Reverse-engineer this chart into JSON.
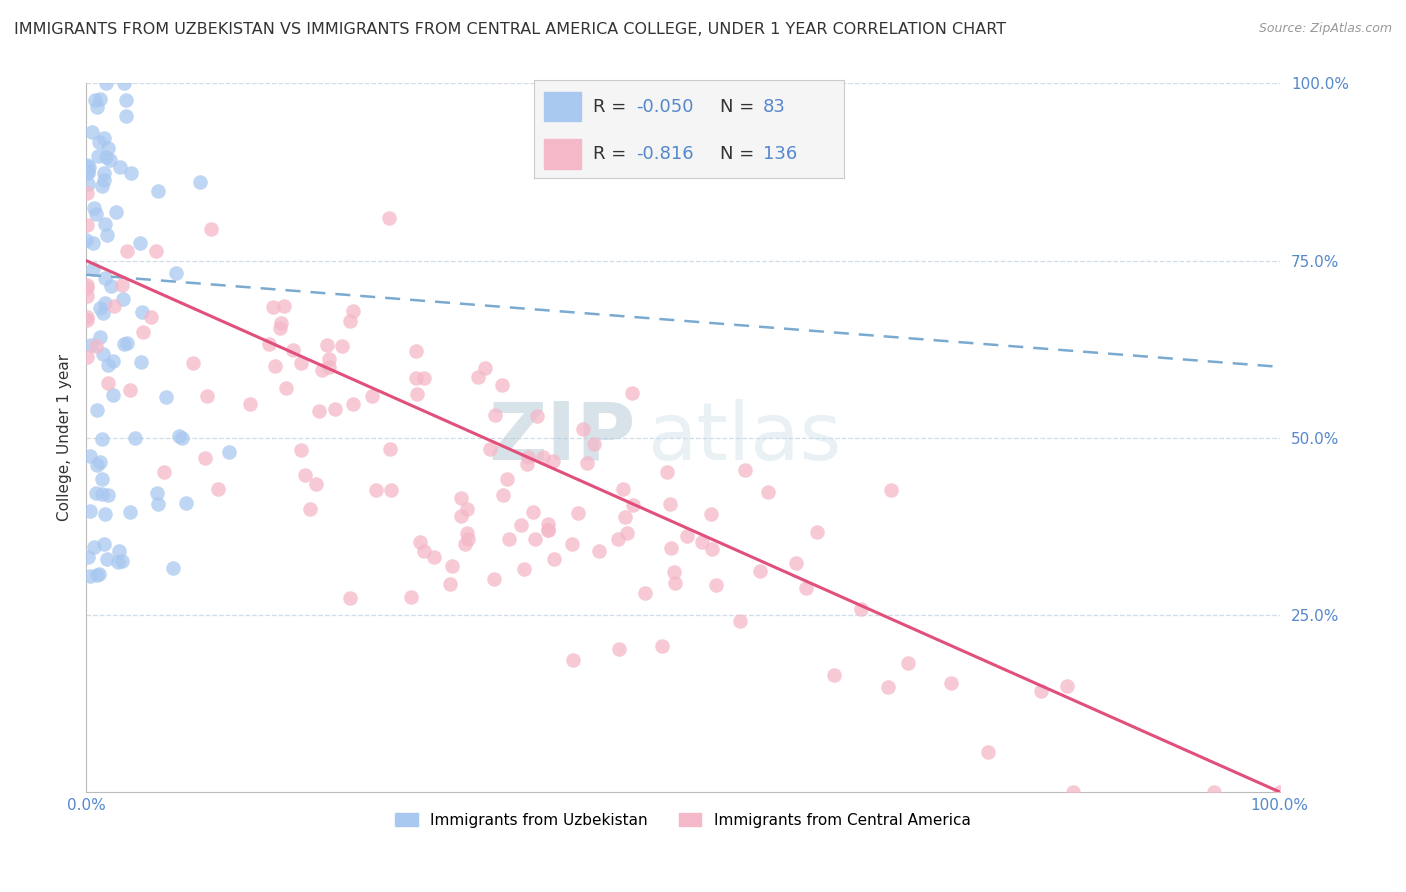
{
  "title": "IMMIGRANTS FROM UZBEKISTAN VS IMMIGRANTS FROM CENTRAL AMERICA COLLEGE, UNDER 1 YEAR CORRELATION CHART",
  "source": "Source: ZipAtlas.com",
  "ylabel": "College, Under 1 year",
  "xlim": [
    0.0,
    1.0
  ],
  "ylim": [
    0.0,
    1.0
  ],
  "yticks": [
    0.25,
    0.5,
    0.75,
    1.0
  ],
  "ytick_labels": [
    "25.0%",
    "50.0%",
    "75.0%",
    "100.0%"
  ],
  "xtick_left_label": "0.0%",
  "xtick_right_label": "100.0%",
  "legend_entries": [
    {
      "label": "Immigrants from Uzbekistan",
      "color": "#a8c8f0",
      "R": "-0.050",
      "N": "83"
    },
    {
      "label": "Immigrants from Central America",
      "color": "#f4b8c8",
      "R": "-0.816",
      "N": "136"
    }
  ],
  "R_uzbekistan": -0.05,
  "N_uzbekistan": 83,
  "R_central_america": -0.816,
  "N_central_america": 136,
  "scatter_color_uzbekistan": "#a8c8f0",
  "scatter_color_central_america": "#f4b8c8",
  "line_color_uzbekistan": "#7aaad0",
  "line_color_central_america": "#e0507a",
  "background_color": "#ffffff",
  "watermark_zip": "ZIP",
  "watermark_atlas": "atlas",
  "watermark_color": "#c8d8e8",
  "title_fontsize": 11.5,
  "axis_label_fontsize": 11,
  "legend_fontsize": 13,
  "tick_fontsize": 11,
  "grid_color": "#d0dde8",
  "legend_R_label": "R = ",
  "legend_N_label": "N = ",
  "legend_uz_R": "-0.050",
  "legend_uz_N": "83",
  "legend_ca_R": "-0.816",
  "legend_ca_N": "136"
}
